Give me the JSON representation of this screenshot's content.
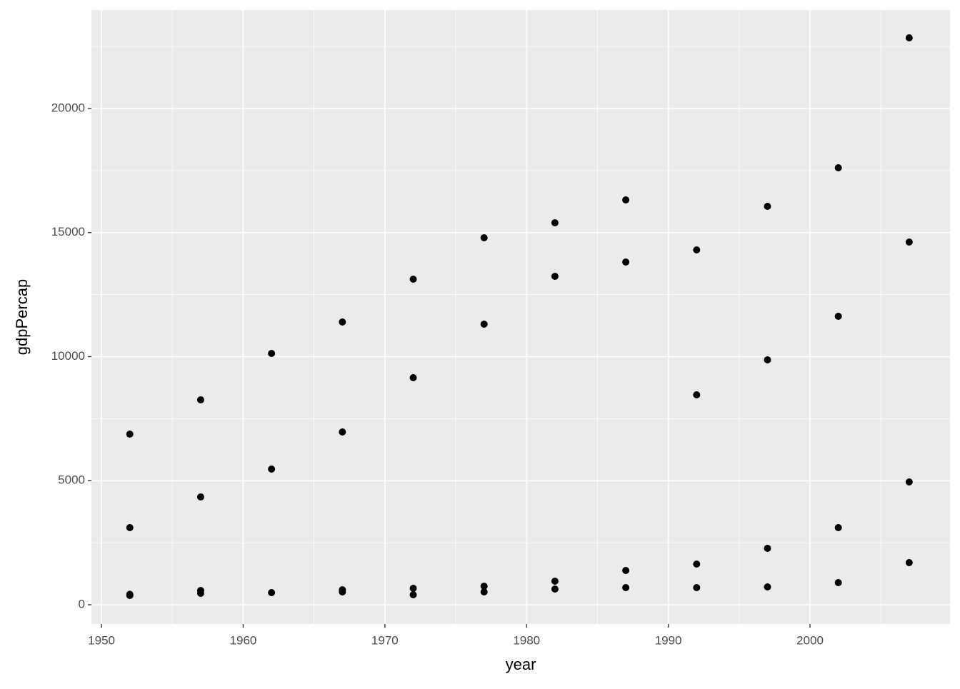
{
  "chart_data": {
    "type": "scatter",
    "x_label": "year",
    "y_label": "gdpPercap",
    "x": [
      1952,
      1952,
      1952,
      1952,
      1957,
      1957,
      1957,
      1957,
      1962,
      1962,
      1962,
      1967,
      1967,
      1967,
      1967,
      1972,
      1972,
      1972,
      1972,
      1977,
      1977,
      1977,
      1977,
      1982,
      1982,
      1982,
      1982,
      1987,
      1987,
      1987,
      1987,
      1992,
      1992,
      1992,
      1992,
      1997,
      1997,
      1997,
      1997,
      2002,
      2002,
      2002,
      2002,
      2007,
      2007,
      2007,
      2007
    ],
    "y": [
      6878,
      3108,
      420,
      375,
      8259,
      4345,
      576,
      460,
      10129,
      5468,
      489,
      11396,
      6964,
      604,
      518,
      13122,
      9151,
      662,
      403,
      14791,
      11309,
      748,
      518,
      15396,
      13237,
      950,
      633,
      16317,
      13813,
      1381,
      691,
      14302,
      8460,
      1640,
      691,
      16058,
      9871,
      2273,
      719,
      17612,
      11626,
      3108,
      892,
      22849,
      14619,
      4950,
      1698
    ],
    "color": "#000000",
    "xlim": [
      1949.29,
      2009.88
    ],
    "ylim": [
      -777,
      23971
    ],
    "xticks": [
      1950,
      1960,
      1970,
      1980,
      1990,
      2000
    ],
    "yticks": [
      0,
      5000,
      10000,
      15000,
      20000
    ],
    "xminor": [
      1955,
      1965,
      1975,
      1985,
      1995,
      2005
    ],
    "yminor": [
      2500,
      7500,
      12500,
      17500,
      22500
    ],
    "grid": true,
    "background": "#ebebeb"
  }
}
